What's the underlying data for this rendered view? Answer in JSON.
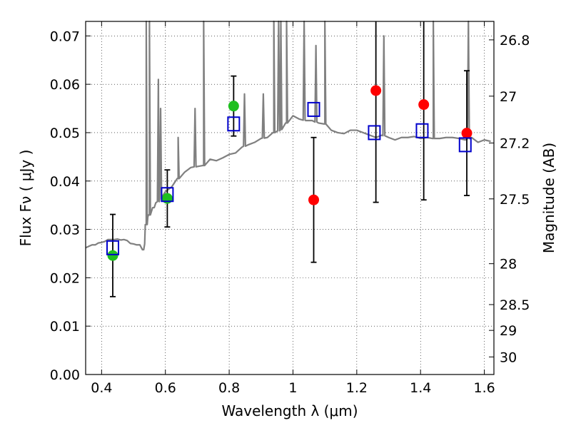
{
  "chart_data": {
    "type": "scatter",
    "xlabel": "Wavelength  λ (μm)",
    "ylabel": "Flux  Fν  ( μJy )",
    "ylabel_right": "Magnitude (AB)",
    "xlim": [
      0.35,
      1.63
    ],
    "ylim": [
      0.0,
      0.073
    ],
    "grid": true,
    "x_ticks": [
      0.4,
      0.6,
      0.8,
      1.0,
      1.2,
      1.4,
      1.6
    ],
    "x_tick_labels": [
      "0.4",
      "0.6",
      "0.8",
      "1",
      "1.2",
      "1.4",
      "1.6"
    ],
    "y_ticks": [
      0.0,
      0.01,
      0.02,
      0.03,
      0.04,
      0.05,
      0.06,
      0.07
    ],
    "y_tick_labels": [
      "0.00",
      "0.01",
      "0.02",
      "0.03",
      "0.04",
      "0.05",
      "0.06",
      "0.07"
    ],
    "mag_ticks": [
      26.8,
      27.0,
      27.2,
      27.5,
      28.0,
      28.5,
      29.0,
      30.0
    ],
    "mag_tick_labels": [
      "26.8",
      "27",
      "27.2",
      "27.5",
      "28",
      "28.5",
      "29",
      "30"
    ],
    "series": [
      {
        "marker": "circle",
        "color": "#1fbf1f",
        "points": [
          {
            "x": 0.435,
            "y": 0.0246,
            "err": 0.0085
          },
          {
            "x": 0.606,
            "y": 0.0364,
            "err": 0.0059
          },
          {
            "x": 0.814,
            "y": 0.0555,
            "err": 0.0062
          }
        ]
      },
      {
        "marker": "circle",
        "color": "#ff0000",
        "points": [
          {
            "x": 1.065,
            "y": 0.0361,
            "err": 0.0129
          },
          {
            "x": 1.26,
            "y": 0.0587,
            "err": 0.0231
          },
          {
            "x": 1.41,
            "y": 0.0558,
            "err": 0.0197
          },
          {
            "x": 1.545,
            "y": 0.0499,
            "err": 0.0129
          }
        ]
      },
      {
        "marker": "open-square",
        "color": "#0000cc",
        "points": [
          {
            "x": 0.435,
            "y": 0.0262
          },
          {
            "x": 0.606,
            "y": 0.0372
          },
          {
            "x": 0.814,
            "y": 0.0518
          },
          {
            "x": 1.065,
            "y": 0.0548
          },
          {
            "x": 1.255,
            "y": 0.05
          },
          {
            "x": 1.405,
            "y": 0.0504
          },
          {
            "x": 1.54,
            "y": 0.0475
          }
        ]
      }
    ],
    "model_spectrum": {
      "color": "#808080",
      "x": [
        0.35,
        0.36,
        0.37,
        0.38,
        0.39,
        0.4,
        0.41,
        0.42,
        0.43,
        0.44,
        0.45,
        0.46,
        0.47,
        0.48,
        0.49,
        0.5,
        0.51,
        0.52,
        0.528,
        0.532,
        0.535,
        0.54,
        0.545,
        0.55,
        0.56,
        0.565,
        0.57,
        0.58,
        0.59,
        0.6,
        0.62,
        0.64,
        0.66,
        0.68,
        0.7,
        0.72,
        0.74,
        0.76,
        0.78,
        0.8,
        0.82,
        0.84,
        0.86,
        0.88,
        0.9,
        0.92,
        0.94,
        0.96,
        0.98,
        1.0,
        1.02,
        1.04,
        1.06,
        1.08,
        1.1,
        1.12,
        1.14,
        1.16,
        1.18,
        1.2,
        1.22,
        1.24,
        1.26,
        1.28,
        1.3,
        1.32,
        1.34,
        1.36,
        1.38,
        1.4,
        1.42,
        1.44,
        1.46,
        1.48,
        1.5,
        1.52,
        1.54,
        1.56,
        1.58,
        1.6,
        1.62
      ],
      "y": [
        0.0262,
        0.0265,
        0.0268,
        0.0268,
        0.0272,
        0.0273,
        0.0275,
        0.0279,
        0.0279,
        0.0279,
        0.028,
        0.0278,
        0.0279,
        0.0277,
        0.0271,
        0.027,
        0.0268,
        0.0268,
        0.0258,
        0.0258,
        0.027,
        0.031,
        0.0326,
        0.033,
        0.0345,
        0.0345,
        0.0355,
        0.0358,
        0.0368,
        0.0378,
        0.0388,
        0.0405,
        0.0418,
        0.0428,
        0.043,
        0.0432,
        0.0445,
        0.0442,
        0.0448,
        0.0455,
        0.0458,
        0.047,
        0.0475,
        0.048,
        0.0488,
        0.049,
        0.05,
        0.0505,
        0.052,
        0.0535,
        0.0528,
        0.0525,
        0.0525,
        0.052,
        0.0518,
        0.0505,
        0.05,
        0.0498,
        0.0505,
        0.0505,
        0.05,
        0.0495,
        0.049,
        0.0495,
        0.049,
        0.0485,
        0.049,
        0.049,
        0.0492,
        0.0488,
        0.049,
        0.0488,
        0.0488,
        0.049,
        0.049,
        0.0488,
        0.0485,
        0.049,
        0.048,
        0.0485,
        0.0482
      ]
    },
    "emission_lines": [
      {
        "x": 0.54,
        "peak": 0.073
      },
      {
        "x": 0.55,
        "peak": 0.073
      },
      {
        "x": 0.578,
        "peak": 0.061
      },
      {
        "x": 0.585,
        "peak": 0.055
      },
      {
        "x": 0.64,
        "peak": 0.049
      },
      {
        "x": 0.693,
        "peak": 0.055
      },
      {
        "x": 0.72,
        "peak": 0.073
      },
      {
        "x": 0.848,
        "peak": 0.058
      },
      {
        "x": 0.907,
        "peak": 0.058
      },
      {
        "x": 0.94,
        "peak": 0.073
      },
      {
        "x": 0.955,
        "peak": 0.073
      },
      {
        "x": 0.962,
        "peak": 0.073
      },
      {
        "x": 0.98,
        "peak": 0.073
      },
      {
        "x": 1.035,
        "peak": 0.073
      },
      {
        "x": 1.072,
        "peak": 0.068
      },
      {
        "x": 1.1,
        "peak": 0.073
      },
      {
        "x": 1.285,
        "peak": 0.07
      },
      {
        "x": 1.44,
        "peak": 0.073
      },
      {
        "x": 1.55,
        "peak": 0.073
      }
    ]
  }
}
